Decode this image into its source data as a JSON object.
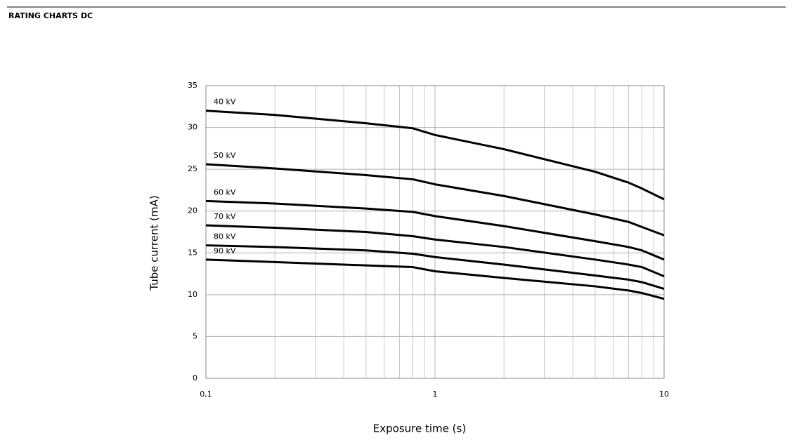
{
  "header": {
    "title": "RATING CHARTS DC"
  },
  "chart_data": {
    "type": "line",
    "xscale": "log",
    "grid": true,
    "minor_grid": true,
    "xlabel": "Exposure time (s)",
    "ylabel": "Tube current (mA)",
    "xlim": [
      0.1,
      10
    ],
    "ylim": [
      0,
      35
    ],
    "xticks": [
      {
        "value": 0.1,
        "label": "0,1"
      },
      1,
      10
    ],
    "yticks": [
      0,
      5,
      10,
      15,
      20,
      25,
      30,
      35
    ],
    "x": [
      0.1,
      0.2,
      0.5,
      0.8,
      1,
      2,
      5,
      7,
      8,
      10
    ],
    "series": [
      {
        "name": "40 kV",
        "color": "#000000",
        "values": [
          32.0,
          31.5,
          30.5,
          29.9,
          29.1,
          27.4,
          24.7,
          23.4,
          22.7,
          21.4
        ]
      },
      {
        "name": "50 kV",
        "color": "#000000",
        "values": [
          25.6,
          25.1,
          24.3,
          23.8,
          23.2,
          21.8,
          19.6,
          18.7,
          18.1,
          17.1
        ]
      },
      {
        "name": "60 kV",
        "color": "#000000",
        "values": [
          21.2,
          20.9,
          20.3,
          19.9,
          19.4,
          18.2,
          16.4,
          15.7,
          15.3,
          14.2
        ]
      },
      {
        "name": "70 kV",
        "color": "#000000",
        "values": [
          18.3,
          18.0,
          17.5,
          17.0,
          16.6,
          15.7,
          14.2,
          13.6,
          13.3,
          12.2
        ]
      },
      {
        "name": "80 kV",
        "color": "#000000",
        "values": [
          15.9,
          15.7,
          15.3,
          14.9,
          14.5,
          13.6,
          12.3,
          11.8,
          11.5,
          10.7
        ]
      },
      {
        "name": "90 kV",
        "color": "#000000",
        "values": [
          14.2,
          13.9,
          13.5,
          13.3,
          12.8,
          12.0,
          11.0,
          10.5,
          10.2,
          9.5
        ]
      }
    ]
  }
}
